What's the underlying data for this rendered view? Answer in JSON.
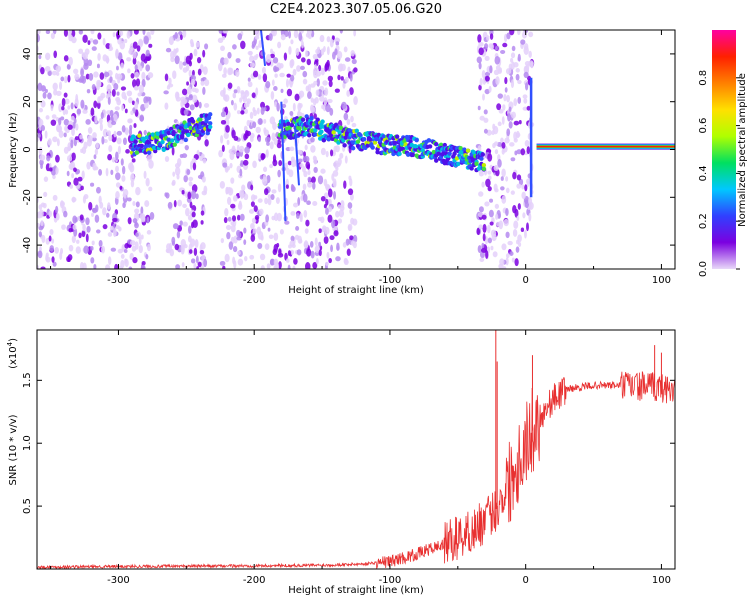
{
  "title": "C2E4.2023.307.05.06.G20",
  "chart_data": [
    {
      "type": "heatmap",
      "title": "C2E4.2023.307.05.06.G20",
      "xlabel": "Height of straight line (km)",
      "ylabel": "Frequency (Hz)",
      "xlim": [
        -360,
        110
      ],
      "ylim": [
        -50,
        50
      ],
      "x_ticks": [
        -300,
        -200,
        -100,
        0,
        100
      ],
      "y_ticks": [
        -40,
        -20,
        0,
        20,
        40
      ],
      "colorbar": {
        "label": "Normalized spectral amplitude",
        "range": [
          0,
          1
        ],
        "ticks": [
          0.0,
          0.2,
          0.4,
          0.6,
          0.8
        ],
        "tick_labels": [
          "0.0",
          "0.2",
          "0.4",
          "0.6",
          "0.8"
        ],
        "colormap": [
          "#e8d8f8",
          "#7b00e0",
          "#3040ff",
          "#00c8ff",
          "#00e060",
          "#b0ff00",
          "#ffe000",
          "#ff8000",
          "#ff2000",
          "#ff00a0"
        ]
      },
      "signal_track": {
        "x": [
          -280,
          -265,
          -250,
          -240,
          -232,
          -180,
          -170,
          -160,
          -150,
          -125,
          -115,
          -100,
          -90,
          -80,
          -70,
          -60,
          -50,
          -40,
          -35,
          10,
          50,
          100,
          110
        ],
        "y": [
          2,
          4,
          8,
          10,
          11,
          8,
          9,
          10,
          8,
          4,
          3,
          2,
          2,
          1,
          0,
          -2,
          -3,
          -4,
          -5,
          1,
          1,
          1,
          1
        ]
      },
      "noise_bands": [
        [
          -360,
          -275
        ],
        [
          -265,
          -235
        ],
        [
          -225,
          -125
        ],
        [
          -35,
          5
        ]
      ]
    },
    {
      "type": "line",
      "xlabel": "Height of straight line (km)",
      "ylabel": "SNR (10 * v/v)",
      "y_scale_label": "(x10^4)",
      "xlim": [
        -360,
        110
      ],
      "ylim": [
        0,
        1.9
      ],
      "x_ticks": [
        -300,
        -200,
        -100,
        0,
        100
      ],
      "y_ticks": [
        0.5,
        1.0,
        1.5
      ],
      "series_color": "#e83030",
      "baseline": {
        "x": [
          -360,
          -300,
          -200,
          -150,
          -120,
          -100
        ],
        "y": [
          0.015,
          0.02,
          0.025,
          0.03,
          0.04,
          0.06
        ]
      },
      "trend": {
        "x": [
          -100,
          -80,
          -60,
          -40,
          -30,
          -20,
          -10,
          0,
          10,
          20,
          30,
          50,
          70,
          90,
          110
        ],
        "y": [
          0.06,
          0.12,
          0.2,
          0.3,
          0.38,
          0.5,
          0.75,
          1.0,
          1.2,
          1.35,
          1.43,
          1.46,
          1.46,
          1.45,
          1.43
        ]
      },
      "spikes": [
        {
          "x": -22,
          "y": 1.9
        },
        {
          "x": -21,
          "y": 1.65
        },
        {
          "x": 5,
          "y": 1.7
        },
        {
          "x": 95,
          "y": 1.78
        },
        {
          "x": 100,
          "y": 1.72
        }
      ]
    }
  ]
}
